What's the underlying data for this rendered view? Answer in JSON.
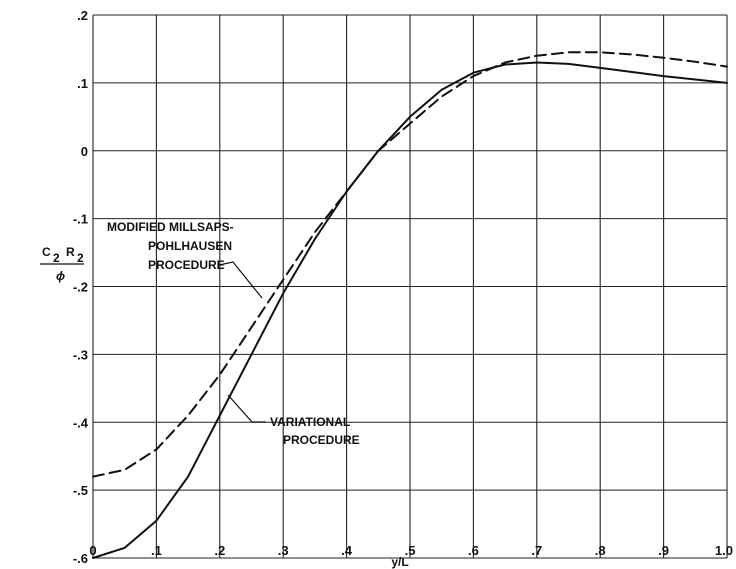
{
  "chart_data": {
    "type": "line",
    "xlabel": "y/L",
    "ylabel": {
      "numerator_c": "C",
      "numerator_c_sub": "2",
      "numerator_r": "R",
      "numerator_r_sub": "2",
      "denominator": "ϕ"
    },
    "xlim": [
      0,
      1.0
    ],
    "ylim": [
      -0.6,
      0.2
    ],
    "x_ticks": [
      0,
      0.1,
      0.2,
      0.3,
      0.4,
      0.5,
      0.6,
      0.7,
      0.8,
      0.9,
      1.0
    ],
    "x_tick_labels": [
      "0",
      ".1",
      ".2",
      ".3",
      ".4",
      ".5",
      ".6",
      ".7",
      ".8",
      ".9",
      "1.0"
    ],
    "y_ticks": [
      0.2,
      0.1,
      0,
      -0.1,
      -0.2,
      -0.3,
      -0.4,
      -0.5,
      -0.6
    ],
    "y_tick_labels": [
      ".2",
      ".1",
      "0",
      "-.1",
      "-.2",
      "-.3",
      "-.4",
      "-.5",
      "-.6"
    ],
    "grid": "major",
    "series": [
      {
        "style": "dashed",
        "x": [
          0,
          0.05,
          0.1,
          0.15,
          0.2,
          0.25,
          0.3,
          0.35,
          0.4,
          0.45,
          0.5,
          0.55,
          0.6,
          0.65,
          0.7,
          0.75,
          0.8,
          0.85,
          0.9,
          0.95,
          1.0
        ],
        "y": [
          -0.48,
          -0.47,
          -0.44,
          -0.39,
          -0.33,
          -0.26,
          -0.19,
          -0.12,
          -0.06,
          0.0,
          0.04,
          0.08,
          0.11,
          0.13,
          0.14,
          0.145,
          0.145,
          0.142,
          0.137,
          0.131,
          0.124
        ]
      },
      {
        "style": "solid",
        "x": [
          0,
          0.05,
          0.1,
          0.15,
          0.2,
          0.25,
          0.3,
          0.35,
          0.4,
          0.45,
          0.5,
          0.55,
          0.6,
          0.65,
          0.7,
          0.75,
          0.8,
          0.85,
          0.9,
          0.95,
          1.0
        ],
        "y": [
          -0.6,
          -0.585,
          -0.545,
          -0.48,
          -0.39,
          -0.3,
          -0.21,
          -0.13,
          -0.06,
          0.0,
          0.05,
          0.09,
          0.115,
          0.127,
          0.13,
          0.128,
          0.122,
          0.116,
          0.11,
          0.105,
          0.1
        ]
      }
    ],
    "annotations": [
      {
        "lines": [
          "MODIFIED MILLSAPS-",
          "POHLHAUSEN",
          "PROCEDURE"
        ],
        "target_series": 0
      },
      {
        "lines": [
          "VARIATIONAL",
          "PROCEDURE"
        ],
        "target_series": 1
      }
    ]
  }
}
